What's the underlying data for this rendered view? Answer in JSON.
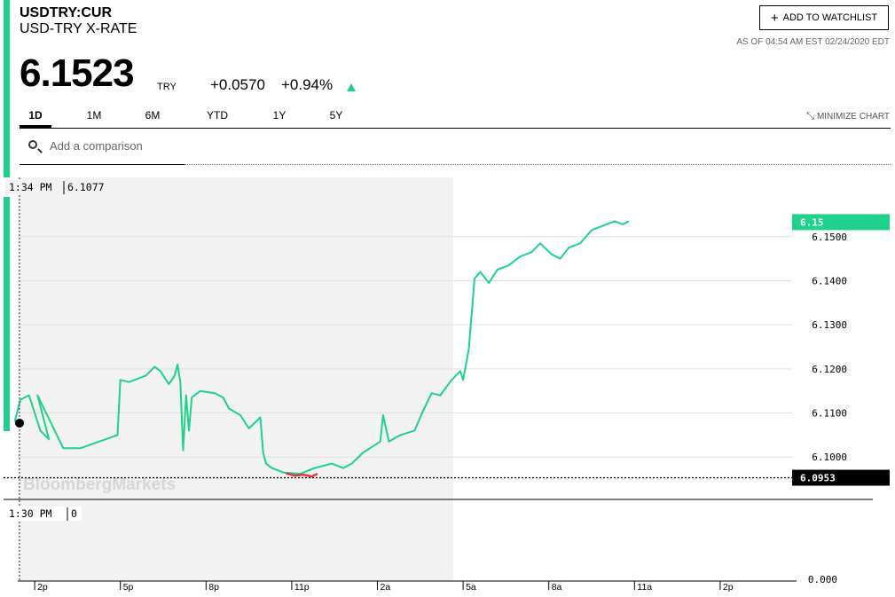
{
  "header": {
    "ticker": "USDTRY:CUR",
    "name": "USD-TRY X-RATE",
    "price": "6.1523",
    "currency": "TRY",
    "change": "+0.0570",
    "change_pct": "+0.94%",
    "direction_icon": "up-triangle-icon",
    "watchlist_label": "ADD TO WATCHLIST",
    "as_of": "AS OF 04:54 AM EST 02/24/2020 EDT"
  },
  "tabs": [
    {
      "label": "1D",
      "active": true
    },
    {
      "label": "1M",
      "active": false
    },
    {
      "label": "6M",
      "active": false
    },
    {
      "label": "YTD",
      "active": false
    },
    {
      "label": "1Y",
      "active": false
    },
    {
      "label": "5Y",
      "active": false
    }
  ],
  "minimize_label": "MINIMIZE CHART",
  "search": {
    "placeholder": "Add a comparison"
  },
  "colors": {
    "accent": "#1fd18b",
    "line": "#1fd18b",
    "low": "#e8333c",
    "fill": "#f2f2f2"
  },
  "chart_data": {
    "type": "line",
    "watermark": "BloombergMarkets",
    "ylim": [
      6.094,
      6.156
    ],
    "yticks": [
      6.15,
      6.14,
      6.13,
      6.12,
      6.11,
      6.1
    ],
    "xtick_labels": [
      "2p",
      "5p",
      "8p",
      "11p",
      "2a",
      "5a",
      "8a",
      "11a",
      "2p"
    ],
    "xtick_hours": [
      14,
      17,
      20,
      23,
      26,
      29,
      32,
      35,
      38
    ],
    "current_label": "6.15",
    "low_label": "6.0953",
    "low_value": 6.0953,
    "crosshair": {
      "time": "1:34 PM",
      "value": "6.1077",
      "marker_value": 6.1077
    },
    "volume": {
      "time": "1:30 PM",
      "value": "0",
      "axis_label": "0.000"
    },
    "series": [
      {
        "values": [
          [
            13.3,
            6.108
          ],
          [
            13.5,
            6.113
          ],
          [
            13.8,
            6.114
          ],
          [
            14.2,
            6.106
          ],
          [
            14.5,
            6.104
          ],
          [
            14.1,
            6.114
          ],
          [
            15.0,
            6.102
          ],
          [
            15.6,
            6.102
          ],
          [
            16.9,
            6.105
          ],
          [
            17.0,
            6.1175
          ],
          [
            17.3,
            6.117
          ],
          [
            17.9,
            6.1185
          ],
          [
            18.2,
            6.1205
          ],
          [
            18.4,
            6.1195
          ],
          [
            18.7,
            6.1165
          ],
          [
            18.9,
            6.1185
          ],
          [
            19.0,
            6.121
          ],
          [
            19.1,
            6.117
          ],
          [
            19.2,
            6.1015
          ],
          [
            19.3,
            6.114
          ],
          [
            19.4,
            6.106
          ],
          [
            19.5,
            6.1135
          ],
          [
            19.8,
            6.115
          ],
          [
            20.3,
            6.1145
          ],
          [
            20.6,
            6.1135
          ],
          [
            20.8,
            6.111
          ],
          [
            21.2,
            6.1095
          ],
          [
            21.5,
            6.1065
          ],
          [
            21.9,
            6.109
          ],
          [
            22.0,
            6.101
          ],
          [
            22.1,
            6.0985
          ],
          [
            22.3,
            6.0975
          ],
          [
            22.7,
            6.0965
          ],
          [
            23.3,
            6.0962
          ],
          [
            23.8,
            6.0975
          ],
          [
            24.4,
            6.0985
          ],
          [
            24.8,
            6.0975
          ],
          [
            25.1,
            6.0985
          ],
          [
            25.5,
            6.101
          ],
          [
            26.1,
            6.1035
          ],
          [
            26.2,
            6.1095
          ],
          [
            26.4,
            6.1035
          ],
          [
            26.8,
            6.105
          ],
          [
            27.3,
            6.106
          ],
          [
            27.6,
            6.1105
          ],
          [
            27.9,
            6.1145
          ],
          [
            28.2,
            6.114
          ],
          [
            28.6,
            6.1175
          ],
          [
            28.9,
            6.1195
          ],
          [
            29.0,
            6.1175
          ],
          [
            29.2,
            6.1245
          ],
          [
            29.4,
            6.1405
          ],
          [
            29.6,
            6.142
          ],
          [
            29.9,
            6.1395
          ],
          [
            30.2,
            6.1425
          ],
          [
            30.6,
            6.1435
          ],
          [
            31.0,
            6.1455
          ],
          [
            31.4,
            6.1465
          ],
          [
            31.7,
            6.1485
          ],
          [
            32.1,
            6.146
          ],
          [
            32.4,
            6.145
          ],
          [
            32.7,
            6.1475
          ],
          [
            33.1,
            6.1485
          ],
          [
            33.5,
            6.1515
          ],
          [
            33.9,
            6.1525
          ],
          [
            34.3,
            6.1535
          ],
          [
            34.6,
            6.1528
          ],
          [
            34.8,
            6.1535
          ]
        ]
      }
    ],
    "low_segment": [
      [
        22.8,
        6.0963
      ],
      [
        23.1,
        6.0958
      ],
      [
        23.4,
        6.096
      ],
      [
        23.7,
        6.0956
      ],
      [
        23.9,
        6.0962
      ]
    ]
  }
}
